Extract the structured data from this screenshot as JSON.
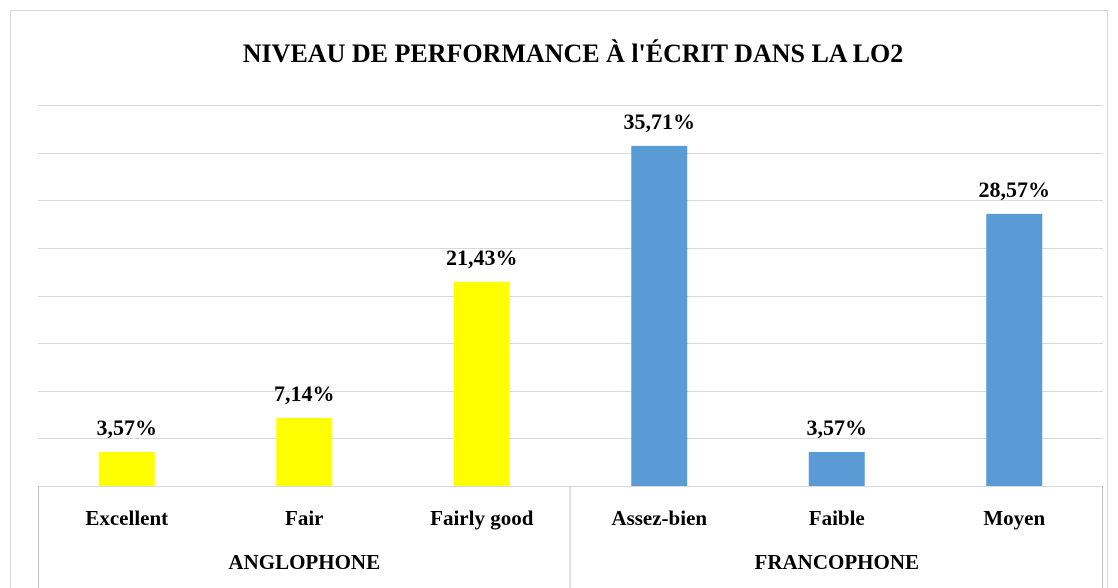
{
  "chart_data": {
    "type": "bar",
    "title": "NIVEAU DE PERFORMANCE À l'ÉCRIT DANS LA LO2",
    "categories": [
      "Excellent",
      "Fair",
      "Fairly good",
      "Assez-bien",
      "Faible",
      "Moyen"
    ],
    "values": [
      3.57,
      7.14,
      21.43,
      35.71,
      3.57,
      28.57
    ],
    "value_labels": [
      "3,57%",
      "7,14%",
      "21,43%",
      "35,71%",
      "3,57%",
      "28,57%"
    ],
    "colors": [
      "#ffff00",
      "#ffff00",
      "#ffff00",
      "#5b9bd5",
      "#5b9bd5",
      "#5b9bd5"
    ],
    "groups": [
      {
        "name": "ANGLOPHONE",
        "size": 3
      },
      {
        "name": "FRANCOPHONE",
        "size": 3
      }
    ],
    "ylim": [
      0,
      40
    ],
    "yticks": [
      0,
      5,
      10,
      15,
      20,
      25,
      30,
      35,
      40
    ],
    "grid": true
  }
}
